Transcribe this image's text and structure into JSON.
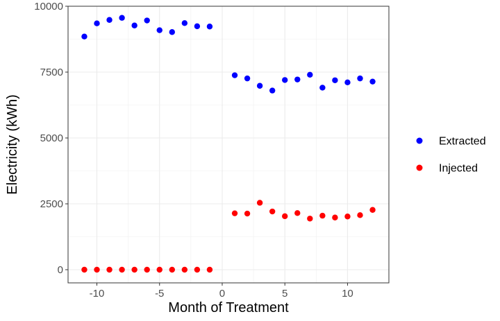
{
  "chart_data": {
    "type": "scatter",
    "title": "",
    "xlabel": "Month of Treatment",
    "ylabel": "Electricity (kWh)",
    "xlim": [
      -12.3,
      13.3
    ],
    "ylim": [
      -500,
      10000
    ],
    "xticks": [
      -10,
      -5,
      0,
      5,
      10
    ],
    "xtick_labels": [
      "-10",
      "-5",
      "0",
      "5",
      "10"
    ],
    "yticks": [
      0,
      2500,
      5000,
      7500,
      10000
    ],
    "ytick_labels": [
      "0",
      "2500",
      "5000",
      "7500",
      "10000"
    ],
    "grid": true,
    "legend_position": "right",
    "series": [
      {
        "name": "Extracted",
        "color": "#0000ff",
        "points": [
          [
            -11,
            8850
          ],
          [
            -10,
            9350
          ],
          [
            -9,
            9480
          ],
          [
            -8,
            9560
          ],
          [
            -7,
            9270
          ],
          [
            -6,
            9460
          ],
          [
            -5,
            9090
          ],
          [
            -4,
            9020
          ],
          [
            -3,
            9360
          ],
          [
            -2,
            9240
          ],
          [
            -1,
            9230
          ],
          [
            1,
            7380
          ],
          [
            2,
            7260
          ],
          [
            3,
            6980
          ],
          [
            4,
            6800
          ],
          [
            5,
            7200
          ],
          [
            6,
            7220
          ],
          [
            7,
            7400
          ],
          [
            8,
            6910
          ],
          [
            9,
            7190
          ],
          [
            10,
            7110
          ],
          [
            11,
            7260
          ],
          [
            12,
            7140
          ]
        ]
      },
      {
        "name": "Injected",
        "color": "#ff0000",
        "points": [
          [
            -11,
            0
          ],
          [
            -10,
            0
          ],
          [
            -9,
            0
          ],
          [
            -8,
            0
          ],
          [
            -7,
            0
          ],
          [
            -6,
            0
          ],
          [
            -5,
            0
          ],
          [
            -4,
            0
          ],
          [
            -3,
            0
          ],
          [
            -2,
            0
          ],
          [
            -1,
            0
          ],
          [
            1,
            2140
          ],
          [
            2,
            2130
          ],
          [
            3,
            2540
          ],
          [
            4,
            2210
          ],
          [
            5,
            2030
          ],
          [
            6,
            2150
          ],
          [
            7,
            1940
          ],
          [
            8,
            2050
          ],
          [
            9,
            1980
          ],
          [
            10,
            2020
          ],
          [
            11,
            2070
          ],
          [
            12,
            2270
          ]
        ]
      }
    ]
  }
}
